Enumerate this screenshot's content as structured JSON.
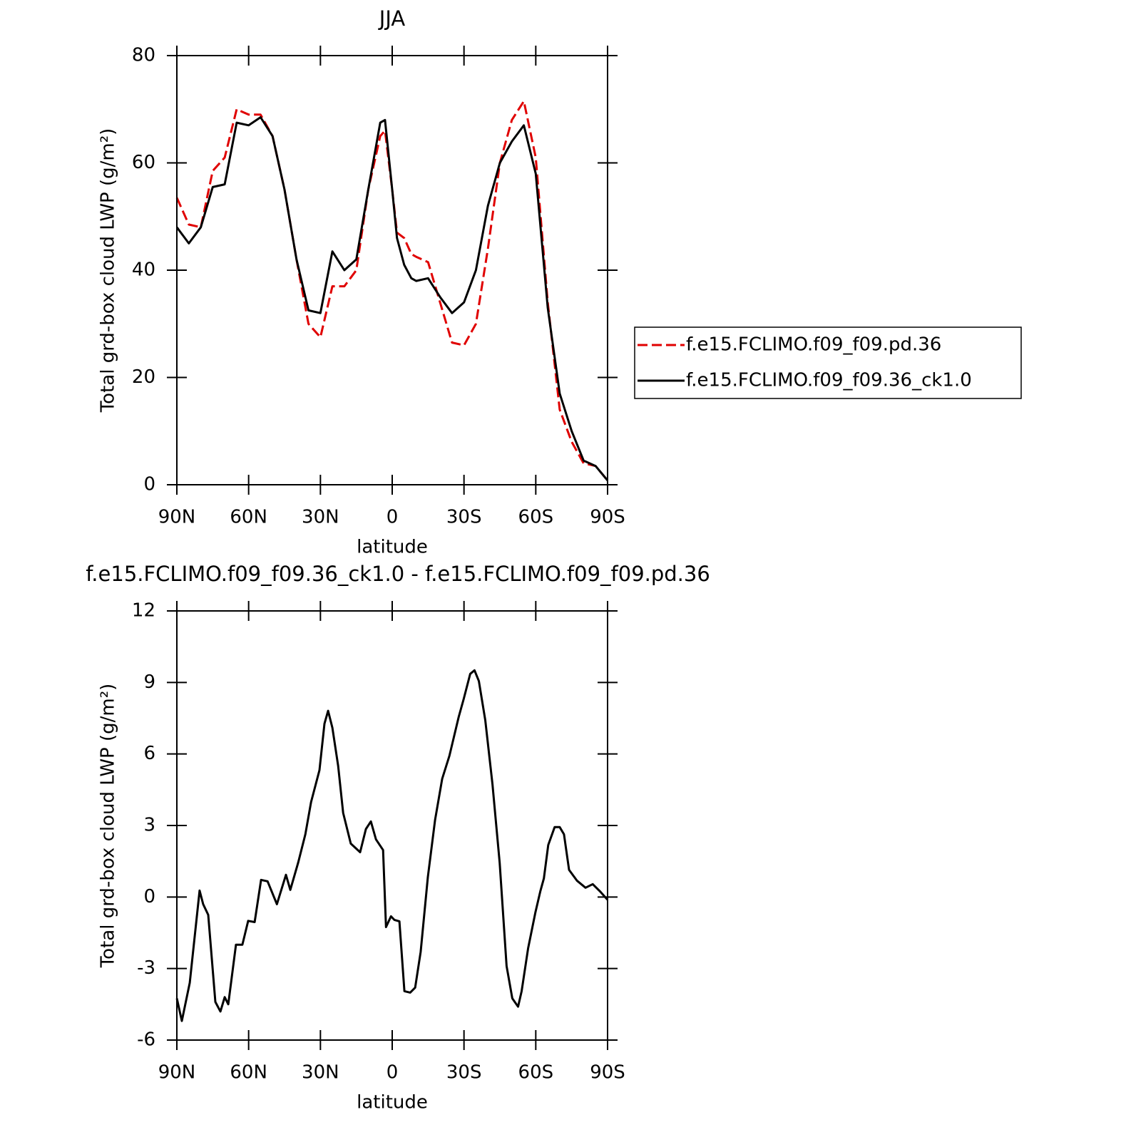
{
  "chart_data": [
    {
      "type": "line",
      "title": "JJA",
      "xlabel": "latitude",
      "ylabel": "Total grd-box cloud LWP (g/m²)",
      "x": [
        90,
        85,
        80,
        75,
        70,
        65,
        60,
        55,
        50,
        45,
        40,
        35,
        30,
        25,
        20,
        15,
        10,
        5,
        3,
        0,
        -2,
        -5,
        -8,
        -10,
        -15,
        -20,
        -25,
        -30,
        -35,
        -40,
        -45,
        -50,
        -55,
        -60,
        -65,
        -70,
        -75,
        -80,
        -85,
        -90
      ],
      "series": [
        {
          "name": "f.e15.FCLIMO.f09_f09.pd.36",
          "color": "#e00000",
          "dashed": true,
          "values": [
            53.5,
            48.5,
            48,
            58.5,
            61,
            70,
            69,
            69,
            65,
            55,
            42,
            30,
            27.5,
            37,
            37,
            40,
            55,
            65,
            66,
            55,
            47,
            46,
            43,
            42.5,
            41.5,
            34,
            26.5,
            26,
            30,
            44,
            60,
            68,
            71.5,
            61,
            34,
            14,
            8,
            4,
            3.5,
            0.8
          ]
        },
        {
          "name": "f.e15.FCLIMO.f09_f09.36_ck1.0",
          "color": "#000000",
          "dashed": false,
          "values": [
            48,
            45,
            48,
            55.5,
            56,
            67.5,
            67,
            68.5,
            65,
            55,
            42,
            32.5,
            32,
            43.5,
            40,
            42,
            55,
            67.5,
            68,
            55,
            46,
            41,
            38.5,
            38,
            38.5,
            35,
            32,
            34,
            40,
            52,
            60,
            64,
            67,
            58,
            33,
            17,
            10,
            4.5,
            3.5,
            0.8
          ]
        }
      ],
      "xlim": [
        90,
        -90
      ],
      "xticks": [
        {
          "value": 90,
          "label": "90N"
        },
        {
          "value": 60,
          "label": "60N"
        },
        {
          "value": 30,
          "label": "30N"
        },
        0,
        {
          "value": -30,
          "label": "30S"
        },
        {
          "value": -60,
          "label": "60S"
        },
        {
          "value": -90,
          "label": "90S"
        }
      ],
      "ylim": [
        0,
        80
      ],
      "yticks": [
        0,
        20,
        40,
        60,
        80
      ],
      "legend": "right"
    },
    {
      "type": "line",
      "title": "f.e15.FCLIMO.f09_f09.36_ck1.0 - f.e15.FCLIMO.f09_f09.pd.36",
      "xlabel": "latitude",
      "ylabel": "Total grd-box cloud LWP (g/m²)",
      "x": [
        90,
        87.9,
        84.6,
        80.5,
        79,
        76.9,
        73.9,
        71.8,
        70,
        68.5,
        65.3,
        62.6,
        60.2,
        57.5,
        54.8,
        52.1,
        48.2,
        44.4,
        42.6,
        39.3,
        36.3,
        33.9,
        30.4,
        28.3,
        26.8,
        25,
        22.6,
        20.5,
        17.3,
        13.4,
        11,
        8.9,
        6.8,
        3.8,
        2.6,
        0.5,
        -0.9,
        -3,
        -5.1,
        -7.5,
        -9.6,
        -11.9,
        -14.9,
        -17.9,
        -20.9,
        -23.9,
        -27.8,
        -29.9,
        -32.6,
        -34.4,
        -36.2,
        -38.9,
        -41.9,
        -44.9,
        -47.8,
        -50.2,
        -52.6,
        -54.1,
        -56.8,
        -59.8,
        -61.9,
        -63.4,
        -65.2,
        -67.9,
        -70,
        -71.8,
        -73.9,
        -77.2,
        -80.8,
        -83.8,
        -86.8,
        -90
      ],
      "values": [
        -4.25,
        -5.2,
        -3.6,
        0.27,
        -0.3,
        -0.75,
        -4.4,
        -4.8,
        -4.2,
        -4.5,
        -2,
        -2,
        -1,
        -1.05,
        0.72,
        0.66,
        -0.3,
        0.93,
        0.3,
        1.44,
        2.63,
        3.98,
        5.32,
        7.27,
        7.81,
        7.1,
        5.5,
        3.53,
        2.24,
        1.88,
        2.85,
        3.17,
        2.42,
        1.97,
        -1.26,
        -0.81,
        -0.96,
        -1.02,
        -3.95,
        -4.01,
        -3.8,
        -2.3,
        0.84,
        3.23,
        4.96,
        5.92,
        7.56,
        8.31,
        9.36,
        9.51,
        9.06,
        7.42,
        4.73,
        1.44,
        -2.9,
        -4.25,
        -4.6,
        -3.95,
        -2.15,
        -0.66,
        0.24,
        0.78,
        2.18,
        2.93,
        2.93,
        2.63,
        1.14,
        0.69,
        0.39,
        0.54,
        0.24,
        -0.12
      ],
      "color": "#000000",
      "xlim": [
        90,
        -90
      ],
      "xticks": [
        {
          "value": 90,
          "label": "90N"
        },
        {
          "value": 60,
          "label": "60N"
        },
        {
          "value": 30,
          "label": "30N"
        },
        0,
        {
          "value": -30,
          "label": "30S"
        },
        {
          "value": -60,
          "label": "60S"
        },
        {
          "value": -90,
          "label": "90S"
        }
      ],
      "ylim": [
        -6,
        12
      ],
      "yticks": [
        -6,
        -3,
        0,
        3,
        6,
        9,
        12
      ]
    }
  ]
}
